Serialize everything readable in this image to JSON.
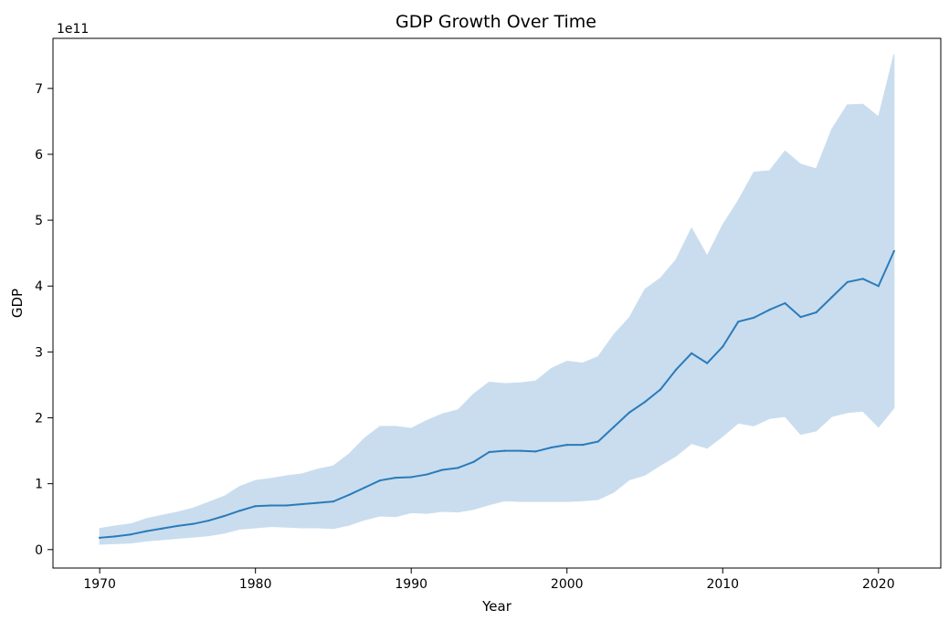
{
  "chart_data": {
    "type": "line",
    "title": "GDP Growth Over Time",
    "xlabel": "Year",
    "ylabel": "GDP",
    "offset_label": "1e11",
    "xlim": [
      1967,
      2024
    ],
    "ylim": [
      -0.28,
      7.76
    ],
    "x_ticks": [
      1970,
      1980,
      1990,
      2000,
      2010,
      2020
    ],
    "y_ticks": [
      0,
      1,
      2,
      3,
      4,
      5,
      6,
      7
    ],
    "y_tick_labels": [
      "0",
      "1",
      "2",
      "3",
      "4",
      "5",
      "6",
      "7"
    ],
    "y_scale_multiplier": 100000000000,
    "grid": false,
    "legend": "none",
    "series": [
      {
        "x": [
          1970,
          1971,
          1972,
          1973,
          1974,
          1975,
          1976,
          1977,
          1978,
          1979,
          1980,
          1981,
          1982,
          1983,
          1984,
          1985,
          1986,
          1987,
          1988,
          1989,
          1990,
          1991,
          1992,
          1993,
          1994,
          1995,
          1996,
          1997,
          1998,
          1999,
          2000,
          2001,
          2002,
          2003,
          2004,
          2005,
          2006,
          2007,
          2008,
          2009,
          2010,
          2011,
          2012,
          2013,
          2014,
          2015,
          2016,
          2017,
          2018,
          2019,
          2020,
          2021
        ],
        "values": [
          0.18,
          0.2,
          0.23,
          0.28,
          0.32,
          0.36,
          0.39,
          0.44,
          0.51,
          0.59,
          0.66,
          0.67,
          0.67,
          0.69,
          0.71,
          0.73,
          0.83,
          0.94,
          1.05,
          1.09,
          1.1,
          1.14,
          1.21,
          1.24,
          1.33,
          1.48,
          1.5,
          1.5,
          1.49,
          1.55,
          1.59,
          1.59,
          1.64,
          1.86,
          2.08,
          2.24,
          2.43,
          2.73,
          2.98,
          2.83,
          3.08,
          3.46,
          3.52,
          3.64,
          3.74,
          3.53,
          3.6,
          3.83,
          4.06,
          4.11,
          4.0,
          4.53
        ],
        "lower": [
          0.08,
          0.09,
          0.1,
          0.13,
          0.15,
          0.17,
          0.19,
          0.21,
          0.25,
          0.31,
          0.33,
          0.35,
          0.34,
          0.33,
          0.33,
          0.32,
          0.37,
          0.45,
          0.51,
          0.5,
          0.56,
          0.55,
          0.58,
          0.57,
          0.61,
          0.68,
          0.74,
          0.73,
          0.73,
          0.73,
          0.73,
          0.74,
          0.76,
          0.87,
          1.06,
          1.13,
          1.28,
          1.42,
          1.61,
          1.54,
          1.72,
          1.92,
          1.88,
          1.99,
          2.02,
          1.75,
          1.8,
          2.02,
          2.08,
          2.1,
          1.86,
          2.15
        ],
        "upper": [
          0.32,
          0.36,
          0.39,
          0.47,
          0.52,
          0.57,
          0.63,
          0.72,
          0.81,
          0.96,
          1.05,
          1.08,
          1.12,
          1.15,
          1.22,
          1.27,
          1.45,
          1.69,
          1.87,
          1.87,
          1.84,
          1.96,
          2.06,
          2.12,
          2.36,
          2.54,
          2.52,
          2.53,
          2.56,
          2.75,
          2.86,
          2.83,
          2.93,
          3.26,
          3.52,
          3.95,
          4.12,
          4.4,
          4.88,
          4.46,
          4.93,
          5.3,
          5.73,
          5.75,
          6.05,
          5.85,
          5.78,
          6.38,
          6.75,
          6.76,
          6.57,
          7.52
        ]
      }
    ],
    "colors": {
      "line": "#2b7bba",
      "band": "#c9ddef",
      "axis": "#000000"
    }
  }
}
